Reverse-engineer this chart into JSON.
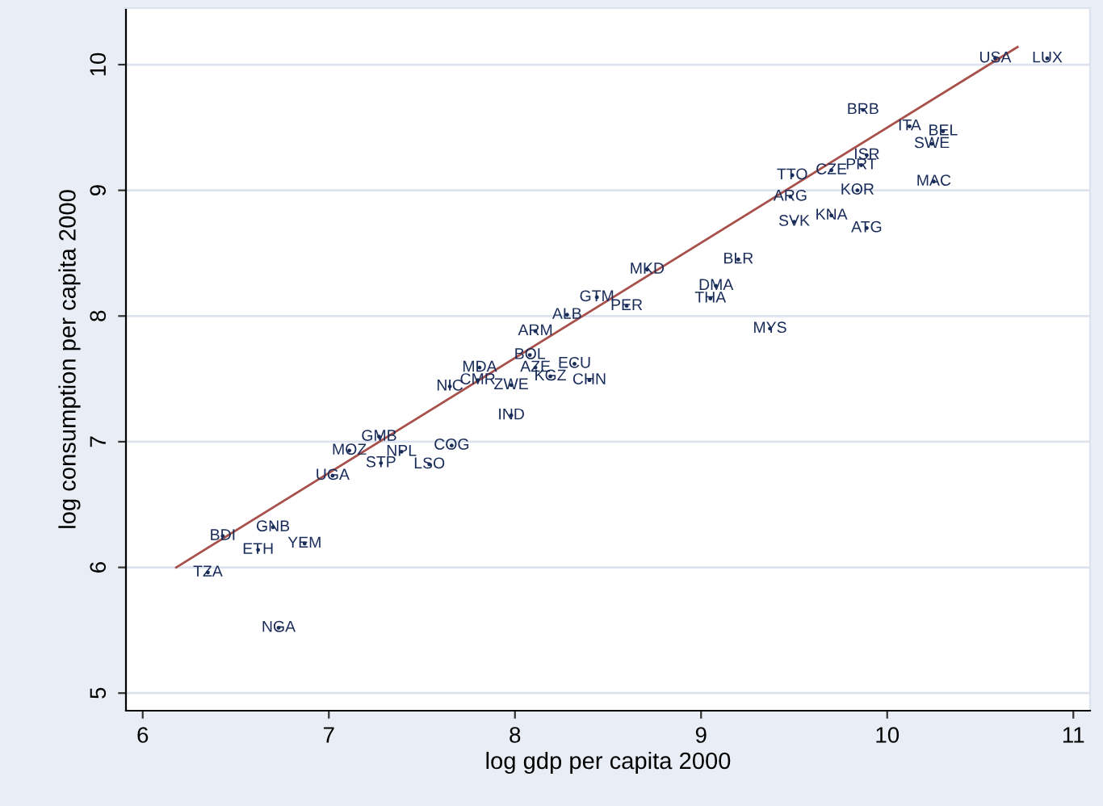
{
  "chart_data": {
    "type": "scatter",
    "xlabel": "log gdp per capita 2000",
    "ylabel": "log consumption per capita 2000",
    "xlim": [
      5.91,
      11.09
    ],
    "xticks": [
      6,
      7,
      8,
      9,
      10,
      11
    ],
    "ylim": [
      4.86,
      10.45
    ],
    "yticks": [
      5,
      6,
      7,
      8,
      9,
      10
    ],
    "grid": "y",
    "series": [
      {
        "color": "#1a2d5a",
        "marker": "circle",
        "x": [
          10.58,
          10.86,
          9.87,
          10.25,
          10.24,
          10.3,
          10.12,
          9.89,
          9.86,
          9.7,
          9.49,
          9.84,
          9.89,
          9.7,
          9.5,
          9.48,
          9.2,
          9.37,
          9.08,
          9.05,
          8.71,
          8.28,
          8.6,
          8.44,
          8.11,
          8.08,
          8.11,
          8.32,
          8.19,
          8.4,
          7.81,
          7.8,
          7.65,
          7.98,
          7.98,
          7.66,
          7.54,
          7.28,
          7.11,
          7.39,
          7.27,
          7.02,
          6.7,
          6.43,
          6.62,
          6.87,
          6.35,
          6.73
        ],
        "values": [
          10.05,
          10.05,
          9.64,
          9.07,
          9.37,
          9.47,
          9.51,
          9.28,
          9.2,
          9.16,
          9.12,
          9.0,
          8.7,
          8.8,
          8.75,
          8.95,
          8.45,
          7.9,
          8.24,
          8.14,
          8.37,
          8.01,
          8.08,
          8.15,
          7.88,
          7.69,
          7.59,
          7.62,
          7.52,
          7.49,
          7.59,
          7.49,
          7.44,
          7.45,
          7.21,
          6.97,
          6.82,
          6.83,
          6.93,
          6.92,
          7.04,
          6.73,
          6.32,
          6.25,
          6.14,
          6.19,
          5.96,
          5.52
        ],
        "value_labels": [
          "USA",
          "LUX",
          "BRB",
          "MAC",
          "SWE",
          "BEL",
          "ITA",
          "ISR",
          "PRT",
          "CZE",
          "TTO",
          "KOR",
          "ATG",
          "KNA",
          "SVK",
          "ARG",
          "BLR",
          "MYS",
          "DMA",
          "THA",
          "MKD",
          "ALB",
          "PER",
          "GTM",
          "ARM",
          "BOL",
          "AZE",
          "ECU",
          "KGZ",
          "CHN",
          "MDA",
          "CMR",
          "NIC",
          "ZWE",
          "IND",
          "COG",
          "LSO",
          "STP",
          "MOZ",
          "NPL",
          "GMB",
          "UGA",
          "GNB",
          "BDI",
          "ETH",
          "YEM",
          "TZA",
          "NGA"
        ]
      },
      {
        "type": "line",
        "color": "#a8504a",
        "x": [
          6.18,
          10.7
        ],
        "values": [
          6.0,
          10.14
        ]
      }
    ]
  }
}
